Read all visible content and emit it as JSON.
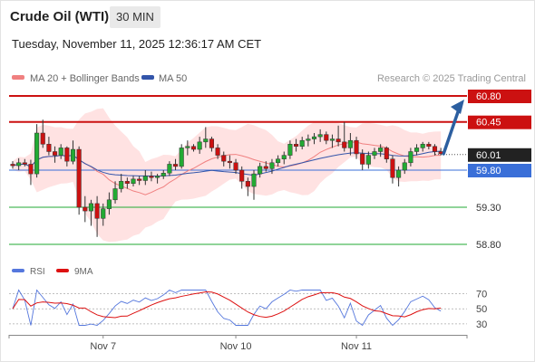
{
  "header": {
    "title": "Crude Oil (WTI)",
    "timeframe": "30 MIN",
    "timestamp": "Tuesday, November 11, 2025 12:36:17 AM CET"
  },
  "legend": {
    "ma20_label": "MA 20 + Bollinger Bands",
    "ma50_label": "MA 50",
    "credit": "Research © 2025 Trading Central"
  },
  "rsi_legend": {
    "rsi_label": "RSI",
    "ma_label": "9MA"
  },
  "colors": {
    "bull": "#22aa33",
    "bear": "#cc1111",
    "resistance": "#cc1111",
    "support": "#22aa33",
    "pivot": "#3a6fd8",
    "ma20": "#f08080",
    "ma50": "#3355aa",
    "band": "#ffd8d8",
    "arrow": "#2c5fa0",
    "rsi": "#5577dd",
    "rsi_ma": "#dd1111"
  },
  "chart_data": {
    "type": "candlestick",
    "y_range": [
      58.65,
      60.95
    ],
    "levels": [
      {
        "label": "60.80",
        "value": 60.8,
        "kind": "resistance"
      },
      {
        "label": "60.45",
        "value": 60.45,
        "kind": "resistance"
      },
      {
        "label": "60.01",
        "value": 60.01,
        "kind": "current"
      },
      {
        "label": "59.80",
        "value": 59.8,
        "kind": "pivot"
      },
      {
        "label": "59.30",
        "value": 59.3,
        "kind": "support"
      },
      {
        "label": "58.80",
        "value": 58.8,
        "kind": "support"
      }
    ],
    "x_labels": [
      {
        "label": "Nov 7",
        "index": 15
      },
      {
        "label": "Nov 10",
        "index": 37
      },
      {
        "label": "Nov 11",
        "index": 57
      }
    ],
    "candles": [
      [
        59.88,
        59.92,
        59.82,
        59.86
      ],
      [
        59.86,
        59.96,
        59.8,
        59.9
      ],
      [
        59.9,
        59.95,
        59.85,
        59.88
      ],
      [
        59.88,
        59.94,
        59.6,
        59.75
      ],
      [
        59.75,
        60.42,
        59.7,
        60.3
      ],
      [
        60.3,
        60.48,
        60.1,
        60.15
      ],
      [
        60.15,
        60.25,
        60.0,
        60.05
      ],
      [
        60.05,
        60.12,
        59.9,
        60.0
      ],
      [
        60.0,
        60.15,
        59.95,
        60.1
      ],
      [
        60.1,
        60.12,
        59.85,
        59.92
      ],
      [
        59.92,
        60.2,
        59.88,
        60.08
      ],
      [
        60.08,
        60.12,
        59.2,
        59.3
      ],
      [
        59.3,
        59.45,
        59.1,
        59.25
      ],
      [
        59.25,
        59.4,
        59.05,
        59.35
      ],
      [
        59.35,
        59.45,
        58.9,
        59.15
      ],
      [
        59.15,
        59.35,
        59.05,
        59.28
      ],
      [
        59.28,
        59.5,
        59.2,
        59.4
      ],
      [
        59.4,
        59.65,
        59.35,
        59.55
      ],
      [
        59.55,
        59.75,
        59.5,
        59.65
      ],
      [
        59.65,
        59.7,
        59.55,
        59.62
      ],
      [
        59.62,
        59.72,
        59.58,
        59.68
      ],
      [
        59.68,
        59.72,
        59.6,
        59.66
      ],
      [
        59.66,
        59.8,
        59.6,
        59.72
      ],
      [
        59.72,
        59.78,
        59.65,
        59.7
      ],
      [
        59.7,
        59.75,
        59.62,
        59.72
      ],
      [
        59.72,
        59.8,
        59.68,
        59.76
      ],
      [
        59.76,
        59.92,
        59.72,
        59.88
      ],
      [
        59.88,
        59.95,
        59.8,
        59.85
      ],
      [
        59.85,
        60.15,
        59.82,
        60.1
      ],
      [
        60.1,
        60.2,
        60.0,
        60.12
      ],
      [
        60.12,
        60.15,
        60.05,
        60.08
      ],
      [
        60.08,
        60.25,
        60.02,
        60.18
      ],
      [
        60.18,
        60.38,
        60.1,
        60.22
      ],
      [
        60.22,
        60.25,
        60.05,
        60.1
      ],
      [
        60.1,
        60.15,
        59.95,
        60.0
      ],
      [
        60.0,
        60.05,
        59.85,
        59.92
      ],
      [
        59.92,
        60.0,
        59.82,
        59.9
      ],
      [
        59.9,
        59.95,
        59.75,
        59.8
      ],
      [
        59.8,
        59.85,
        59.55,
        59.65
      ],
      [
        59.65,
        59.7,
        59.45,
        59.58
      ],
      [
        59.58,
        59.8,
        59.4,
        59.75
      ],
      [
        59.75,
        59.9,
        59.7,
        59.85
      ],
      [
        59.85,
        59.92,
        59.78,
        59.82
      ],
      [
        59.82,
        59.95,
        59.75,
        59.9
      ],
      [
        59.9,
        60.0,
        59.85,
        59.95
      ],
      [
        59.95,
        60.05,
        59.88,
        60.0
      ],
      [
        60.0,
        60.2,
        59.95,
        60.15
      ],
      [
        60.15,
        60.22,
        60.05,
        60.12
      ],
      [
        60.12,
        60.25,
        60.08,
        60.2
      ],
      [
        60.2,
        60.28,
        60.12,
        60.22
      ],
      [
        60.22,
        60.3,
        60.15,
        60.25
      ],
      [
        60.25,
        60.35,
        60.18,
        60.28
      ],
      [
        60.28,
        60.32,
        60.15,
        60.2
      ],
      [
        60.2,
        60.28,
        60.1,
        60.22
      ],
      [
        60.22,
        60.4,
        60.12,
        60.18
      ],
      [
        60.18,
        60.45,
        60.05,
        60.1
      ],
      [
        60.1,
        60.3,
        60.0,
        60.2
      ],
      [
        60.2,
        60.25,
        59.95,
        60.02
      ],
      [
        60.02,
        60.08,
        59.8,
        59.88
      ],
      [
        59.88,
        60.05,
        59.82,
        60.0
      ],
      [
        60.0,
        60.1,
        59.95,
        60.05
      ],
      [
        60.05,
        60.15,
        59.98,
        60.1
      ],
      [
        60.1,
        60.12,
        59.9,
        59.95
      ],
      [
        59.95,
        60.0,
        59.62,
        59.7
      ],
      [
        59.7,
        59.85,
        59.58,
        59.8
      ],
      [
        59.8,
        59.95,
        59.75,
        59.9
      ],
      [
        59.9,
        60.1,
        59.85,
        60.05
      ],
      [
        60.05,
        60.15,
        60.0,
        60.1
      ],
      [
        60.1,
        60.18,
        60.05,
        60.15
      ],
      [
        60.15,
        60.18,
        60.08,
        60.12
      ],
      [
        60.12,
        60.15,
        60.0,
        60.05
      ],
      [
        60.05,
        60.1,
        60.0,
        60.02
      ]
    ],
    "rsi_levels": [
      70,
      50,
      30
    ],
    "rsi_range": [
      25,
      78
    ]
  }
}
